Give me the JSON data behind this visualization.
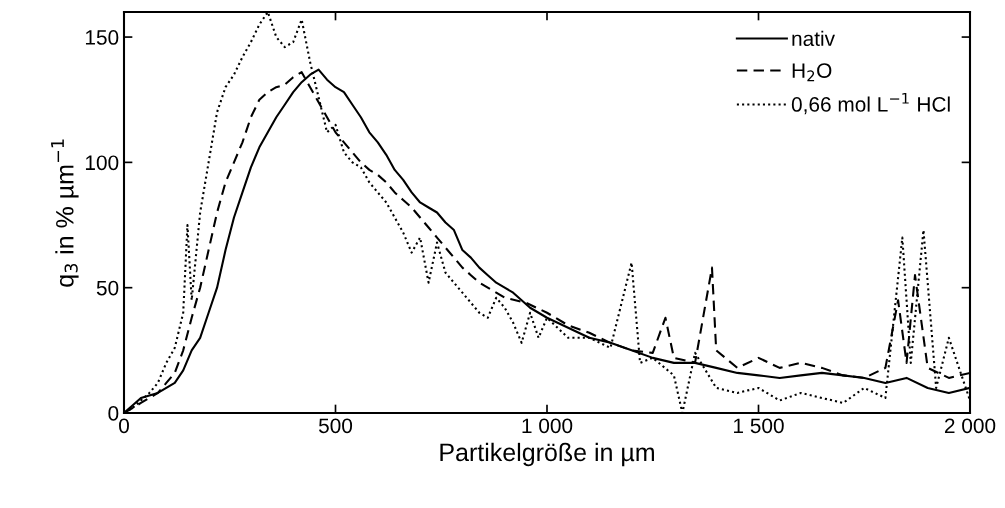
{
  "chart_data": {
    "type": "line",
    "xlabel": "Partikelgröße in µm",
    "ylabel": "q$_{3}$ in % µm$^{−1}$",
    "xlim": [
      0,
      2000
    ],
    "ylim": [
      0,
      160
    ],
    "xticks": [
      0,
      500,
      {
        "value": 1000,
        "label": "1 000"
      },
      {
        "value": 1500,
        "label": "1 500"
      },
      {
        "value": 2000,
        "label": "2 000"
      }
    ],
    "yticks": [
      0,
      50,
      100,
      150
    ],
    "grid": false,
    "legend": "top right",
    "marker": "none",
    "series": [
      {
        "name": "nativ",
        "color": "#000000",
        "line_style": "solid",
        "x": [
          0,
          20,
          40,
          60,
          80,
          100,
          120,
          140,
          160,
          180,
          200,
          220,
          240,
          260,
          280,
          300,
          320,
          340,
          360,
          380,
          400,
          420,
          440,
          460,
          480,
          500,
          520,
          540,
          560,
          580,
          600,
          620,
          640,
          660,
          680,
          700,
          720,
          740,
          760,
          780,
          800,
          820,
          840,
          860,
          880,
          900,
          920,
          940,
          960,
          980,
          1000,
          1050,
          1100,
          1150,
          1200,
          1250,
          1300,
          1350,
          1400,
          1450,
          1500,
          1550,
          1600,
          1650,
          1700,
          1750,
          1800,
          1850,
          1900,
          1950,
          2000
        ],
        "values": [
          0,
          3,
          6,
          7,
          8,
          10,
          12,
          17,
          25,
          30,
          40,
          50,
          65,
          78,
          88,
          98,
          106,
          112,
          118,
          123,
          128,
          132,
          135,
          137,
          133,
          130,
          128,
          123,
          118,
          112,
          108,
          103,
          97,
          93,
          88,
          84,
          82,
          80,
          76,
          73,
          65,
          62,
          58,
          55,
          52,
          50,
          48,
          45,
          42,
          40,
          38,
          34,
          30,
          28,
          25,
          22,
          20,
          20,
          18,
          16,
          15,
          14,
          15,
          16,
          15,
          14,
          12,
          14,
          10,
          8,
          10
        ]
      },
      {
        "name": "H$_{2}$O",
        "color": "#000000",
        "line_style": "dashed",
        "x": [
          0,
          20,
          40,
          60,
          80,
          100,
          120,
          140,
          160,
          180,
          200,
          220,
          240,
          260,
          280,
          300,
          320,
          340,
          360,
          380,
          400,
          420,
          440,
          460,
          480,
          500,
          520,
          540,
          560,
          580,
          600,
          620,
          640,
          660,
          680,
          700,
          720,
          740,
          760,
          780,
          800,
          820,
          840,
          860,
          880,
          900,
          950,
          1000,
          1050,
          1100,
          1150,
          1200,
          1250,
          1280,
          1300,
          1350,
          1390,
          1400,
          1450,
          1500,
          1550,
          1600,
          1650,
          1700,
          1750,
          1800,
          1830,
          1850,
          1870,
          1900,
          1950,
          2000
        ],
        "values": [
          0,
          2,
          4,
          6,
          8,
          12,
          16,
          25,
          38,
          50,
          65,
          80,
          92,
          100,
          108,
          118,
          125,
          128,
          130,
          131,
          134,
          136,
          130,
          124,
          118,
          112,
          108,
          104,
          100,
          97,
          95,
          92,
          88,
          85,
          82,
          78,
          74,
          70,
          66,
          62,
          58,
          55,
          52,
          50,
          48,
          46,
          44,
          40,
          35,
          32,
          28,
          25,
          24,
          38,
          22,
          20,
          58,
          25,
          18,
          22,
          18,
          20,
          18,
          15,
          14,
          18,
          45,
          20,
          55,
          18,
          14,
          16
        ]
      },
      {
        "name": "0,66 mol L$^{−1}$ HCl",
        "color": "#000000",
        "line_style": "dotted",
        "x": [
          0,
          20,
          40,
          60,
          80,
          100,
          120,
          140,
          150,
          160,
          180,
          200,
          220,
          240,
          260,
          280,
          300,
          320,
          340,
          360,
          380,
          400,
          420,
          440,
          460,
          480,
          500,
          520,
          540,
          560,
          580,
          600,
          620,
          640,
          660,
          680,
          700,
          720,
          740,
          760,
          780,
          800,
          820,
          840,
          860,
          880,
          900,
          920,
          940,
          960,
          980,
          1000,
          1050,
          1100,
          1150,
          1200,
          1220,
          1250,
          1300,
          1320,
          1350,
          1400,
          1450,
          1500,
          1550,
          1600,
          1650,
          1700,
          1750,
          1800,
          1840,
          1860,
          1890,
          1920,
          1950,
          2000
        ],
        "values": [
          0,
          2,
          5,
          8,
          12,
          20,
          26,
          40,
          75,
          45,
          80,
          100,
          120,
          130,
          135,
          142,
          148,
          155,
          160,
          150,
          146,
          148,
          157,
          140,
          126,
          112,
          115,
          104,
          100,
          98,
          92,
          88,
          84,
          78,
          72,
          64,
          70,
          52,
          68,
          56,
          52,
          48,
          44,
          40,
          38,
          46,
          42,
          36,
          28,
          40,
          30,
          38,
          30,
          30,
          26,
          60,
          20,
          22,
          15,
          0,
          24,
          10,
          8,
          10,
          5,
          8,
          6,
          4,
          10,
          6,
          70,
          20,
          73,
          10,
          30,
          5
        ]
      }
    ]
  }
}
